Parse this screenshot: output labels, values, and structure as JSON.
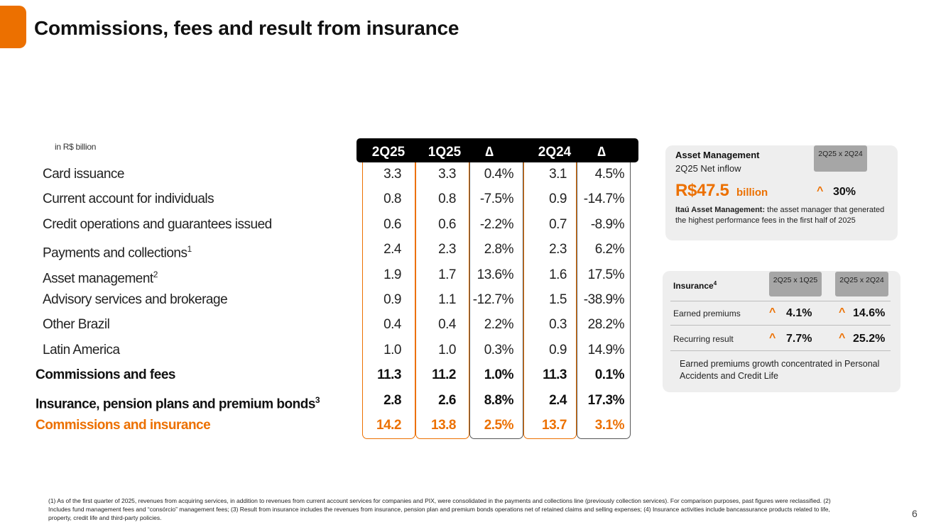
{
  "title": "Commissions, fees and result from insurance",
  "unit_label": "in R$ billion",
  "table": {
    "headers": [
      "2Q25",
      "1Q25",
      "∆",
      "2Q24",
      "∆"
    ],
    "rows": [
      {
        "label": "Card issuance",
        "sup": "",
        "values": [
          "3.3",
          "3.3",
          "0.4%",
          "3.1",
          "4.5%"
        ],
        "style": "normal"
      },
      {
        "label": "Current account for individuals",
        "sup": "",
        "values": [
          "0.8",
          "0.8",
          "-7.5%",
          "0.9",
          "-14.7%"
        ],
        "style": "normal"
      },
      {
        "label": "Credit operations and guarantees issued",
        "sup": "",
        "values": [
          "0.6",
          "0.6",
          "-2.2%",
          "0.7",
          "-8.9%"
        ],
        "style": "normal"
      },
      {
        "label": "Payments and collections",
        "sup": "1",
        "values": [
          "2.4",
          "2.3",
          "2.8%",
          "2.3",
          "6.2%"
        ],
        "style": "normal"
      },
      {
        "label": "Asset management",
        "sup": "2",
        "values": [
          "1.9",
          "1.7",
          "13.6%",
          "1.6",
          "17.5%"
        ],
        "style": "normal"
      },
      {
        "label": "Advisory services and brokerage",
        "sup": "",
        "values": [
          "0.9",
          "1.1",
          "-12.7%",
          "1.5",
          "-38.9%"
        ],
        "style": "normal"
      },
      {
        "label": "Other Brazil",
        "sup": "",
        "values": [
          "0.4",
          "0.4",
          "2.2%",
          "0.3",
          "28.2%"
        ],
        "style": "normal"
      },
      {
        "label": "Latin America",
        "sup": "",
        "values": [
          "1.0",
          "1.0",
          "0.3%",
          "0.9",
          "14.9%"
        ],
        "style": "normal"
      },
      {
        "label": "Commissions and fees",
        "sup": "",
        "values": [
          "11.3",
          "11.2",
          "1.0%",
          "11.3",
          "0.1%"
        ],
        "style": "bold"
      },
      {
        "label": "Insurance, pension plans and premium bonds",
        "sup": "3",
        "values": [
          "2.8",
          "2.6",
          "8.8%",
          "2.4",
          "17.3%"
        ],
        "style": "bold"
      },
      {
        "label": "Commissions and insurance",
        "sup": "",
        "values": [
          "14.2",
          "13.8",
          "2.5%",
          "13.7",
          "3.1%"
        ],
        "style": "orange"
      }
    ]
  },
  "asset_management": {
    "title": "Asset Management",
    "subtitle": "2Q25 Net inflow",
    "tag": "2Q25 x 2Q24",
    "value": "R$47.5",
    "value_unit": "billion",
    "change": "30%",
    "desc_bold": "Itaú Asset Management:",
    "desc_rest": " the asset manager that generated the highest performance fees in the first half of 2025"
  },
  "insurance": {
    "title": "Insurance",
    "title_sup": "4",
    "tag1": "2Q25 x 1Q25",
    "tag2": "2Q25 x 2Q24",
    "rows": [
      {
        "label": "Earned premiums",
        "v1": "4.1%",
        "v2": "14.6%"
      },
      {
        "label": "Recurring result",
        "v1": "7.7%",
        "v2": "25.2%"
      }
    ],
    "note": "Earned premiums growth concentrated in Personal Accidents and Credit Life"
  },
  "footnote": "(1) As of the first quarter of 2025, revenues from acquiring services, in addition to revenues from current account services for companies and PIX, were consolidated in the payments and collections line (previously collection services). For comparison purposes, past figures were reclassified. (2) Includes fund management fees and “consórcio” management fees; (3) Result from insurance includes the revenues from insurance, pension plan and premium bonds operations net of retained claims and selling expenses; (4) Insurance activities include bancassurance products related to life, property, credit life and third-party policies.",
  "page_number": "6",
  "colors": {
    "accent": "#ec7000",
    "header_bg": "#000000",
    "card_bg": "#eeeeee",
    "tag_bg": "#a6a6a6"
  }
}
